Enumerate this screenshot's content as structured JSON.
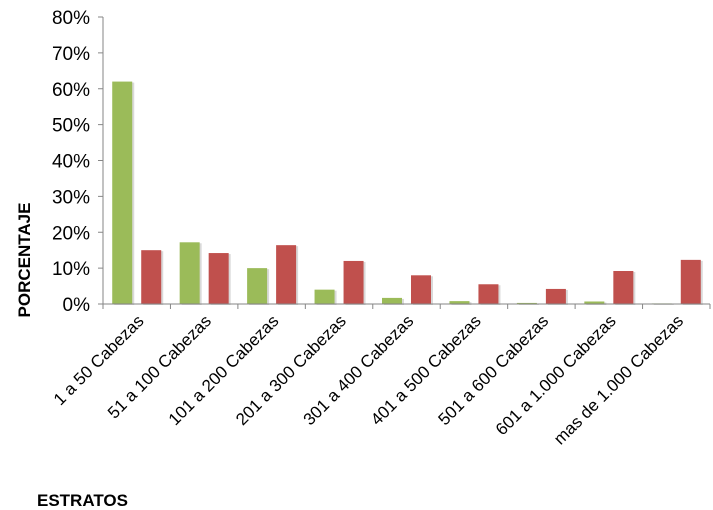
{
  "chart_data": {
    "type": "bar",
    "title": "",
    "xlabel": "ESTRATOS",
    "ylabel": "PORCENTAJE",
    "ylim": [
      0,
      80
    ],
    "y_tick_labels": [
      "0%",
      "10%",
      "20%",
      "30%",
      "40%",
      "50%",
      "60%",
      "70%",
      "80%"
    ],
    "categories": [
      "1 a 50 Cabezas",
      "51 a 100 Cabezas",
      "101 a 200 Cabezas",
      "201 a 300 Cabezas",
      "301 a 400 Cabezas",
      "401 a 500 Cabezas",
      "501 a 600 Cabezas",
      "601 a 1.000 Cabezas",
      "mas de 1.000 Cabezas"
    ],
    "series": [
      {
        "color": "#9BBB59",
        "values": [
          62,
          17.2,
          10,
          4,
          1.7,
          0.8,
          0.3,
          0.7,
          0.1
        ]
      },
      {
        "color": "#C0504D",
        "values": [
          15,
          14.2,
          16.4,
          12,
          8,
          5.5,
          4.2,
          9.2,
          12.3
        ]
      }
    ],
    "grid": false,
    "legend": "none"
  }
}
